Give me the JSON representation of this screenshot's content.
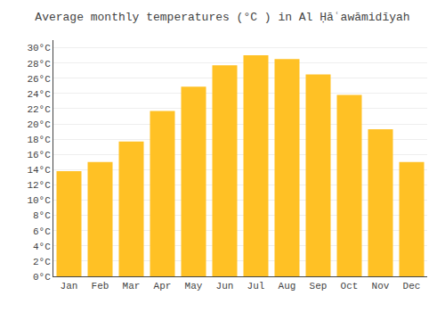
{
  "chart_data": {
    "type": "bar",
    "title": "Average monthly temperatures (°C ) in Al Ḥāʿawāmidīyah",
    "categories": [
      "Jan",
      "Feb",
      "Mar",
      "Apr",
      "May",
      "Jun",
      "Jul",
      "Aug",
      "Sep",
      "Oct",
      "Nov",
      "Dec"
    ],
    "values": [
      13.8,
      15.0,
      17.7,
      21.7,
      24.9,
      27.7,
      29.0,
      28.5,
      26.5,
      23.8,
      19.3,
      15.0
    ],
    "color": "#FFC125",
    "ylim": [
      0,
      31
    ],
    "yticks": [
      {
        "value": 0,
        "label": "0°C"
      },
      {
        "value": 2,
        "label": "2°C"
      },
      {
        "value": 4,
        "label": "4°C"
      },
      {
        "value": 6,
        "label": "6°C"
      },
      {
        "value": 8,
        "label": "8°C"
      },
      {
        "value": 10,
        "label": "10°C"
      },
      {
        "value": 12,
        "label": "12°C"
      },
      {
        "value": 14,
        "label": "14°C"
      },
      {
        "value": 16,
        "label": "16°C"
      },
      {
        "value": 18,
        "label": "18°C"
      },
      {
        "value": 20,
        "label": "20°C"
      },
      {
        "value": 22,
        "label": "22°C"
      },
      {
        "value": 24,
        "label": "24°C"
      },
      {
        "value": 26,
        "label": "26°C"
      },
      {
        "value": 28,
        "label": "28°C"
      },
      {
        "value": 30,
        "label": "30°C"
      }
    ],
    "grid": true
  }
}
